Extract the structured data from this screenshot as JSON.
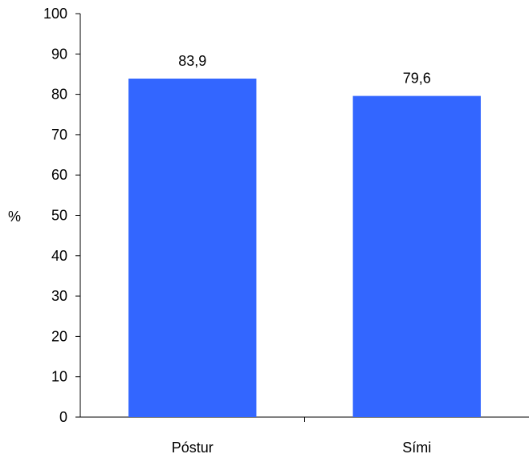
{
  "chart_data": {
    "type": "bar",
    "categories": [
      "Póstur",
      "Sími"
    ],
    "values": [
      83.9,
      79.6
    ],
    "value_labels": [
      "83,9",
      "79,6"
    ],
    "ylabel": "%",
    "xlabel": "",
    "title": "",
    "ylim": [
      0,
      100
    ],
    "yticks": [
      0,
      10,
      20,
      30,
      40,
      50,
      60,
      70,
      80,
      90,
      100
    ],
    "grid": false,
    "legend": "none",
    "bar_color": "#3366FF"
  }
}
